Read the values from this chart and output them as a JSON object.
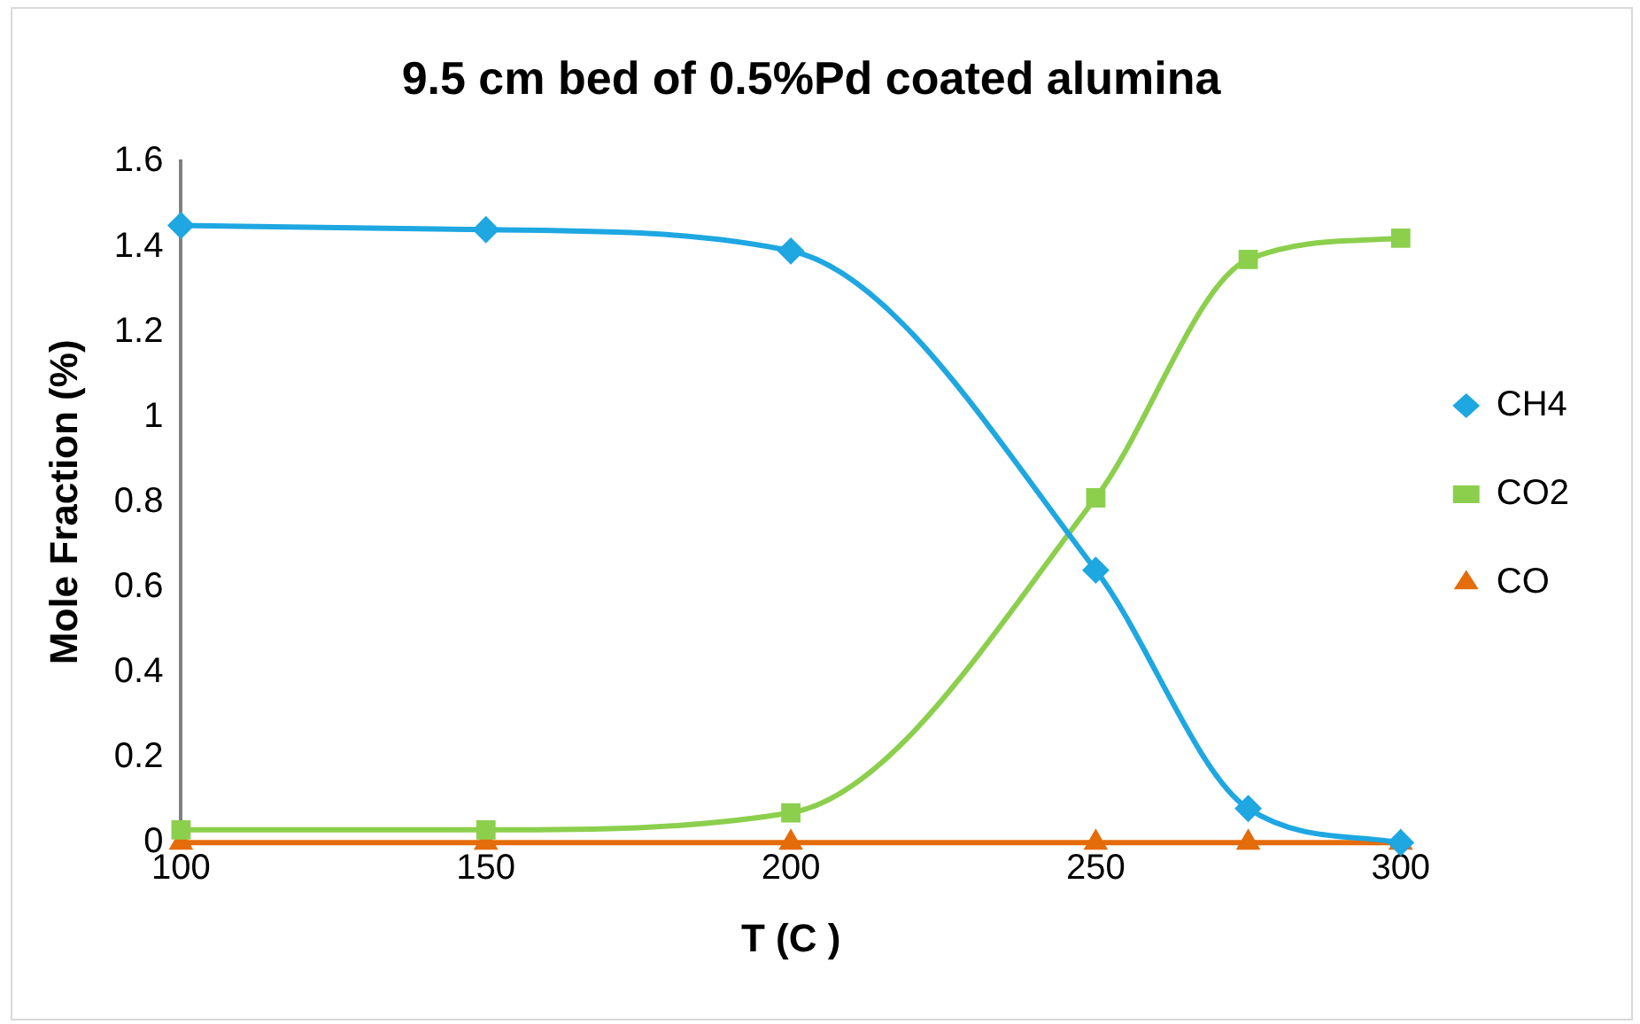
{
  "chart_data": {
    "type": "line",
    "title": "9.5 cm bed of 0.5%Pd coated alumina",
    "xlabel": "T (C )",
    "ylabel": "Mole Fraction (%)",
    "x": [
      100,
      150,
      200,
      250,
      275,
      300
    ],
    "xlim": [
      100,
      300
    ],
    "xticks": [
      100,
      150,
      200,
      250,
      300
    ],
    "ylim": [
      0,
      1.6
    ],
    "yticks": [
      0,
      0.2,
      0.4,
      0.6,
      0.8,
      1,
      1.2,
      1.4,
      1.6
    ],
    "grid": false,
    "legend": "right",
    "line_style": "solid",
    "series": [
      {
        "name": "CH4",
        "color": "#1ea7e1",
        "marker": "diamond",
        "values": [
          1.45,
          1.44,
          1.39,
          0.64,
          0.08,
          0.0
        ]
      },
      {
        "name": "CO2",
        "color": "#8ccf4d",
        "marker": "square",
        "values": [
          0.03,
          0.03,
          0.07,
          0.81,
          1.37,
          1.42
        ]
      },
      {
        "name": "CO",
        "color": "#e46c0a",
        "marker": "triangle",
        "values": [
          0,
          0,
          0,
          0,
          0,
          0
        ]
      }
    ]
  }
}
